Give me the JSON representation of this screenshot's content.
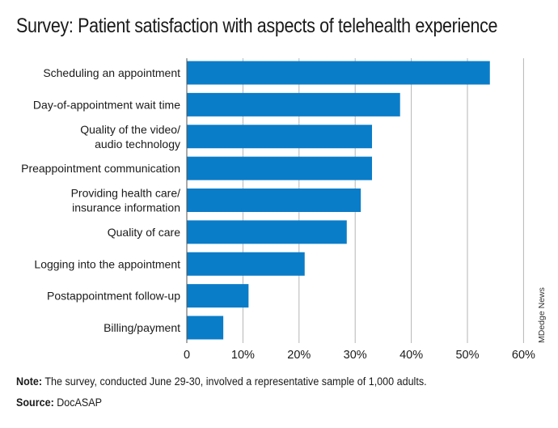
{
  "title": "Survey: Patient satisfaction with aspects of telehealth experience",
  "credit": "MDedge News",
  "note": {
    "label": "Note:",
    "text": " The survey, conducted June 29-30, involved a representative sample of 1,000 adults."
  },
  "source": {
    "label": "Source:",
    "text": " DocASAP"
  },
  "colors": {
    "bar": "#0a7dc9",
    "grid": "#b5b5b5",
    "axis": "#555555"
  },
  "chart_data": {
    "type": "bar",
    "orientation": "horizontal",
    "categories": [
      [
        "Scheduling an appointment"
      ],
      [
        "Day-of-appointment wait time"
      ],
      [
        "Quality of the video/",
        "audio technology"
      ],
      [
        "Preappointment communication"
      ],
      [
        "Providing health care/",
        "insurance information"
      ],
      [
        "Quality of care"
      ],
      [
        "Logging into the appointment"
      ],
      [
        "Postappointment follow-up"
      ],
      [
        "Billing/payment"
      ]
    ],
    "values": [
      54,
      38,
      33,
      33,
      31,
      28.5,
      21,
      11,
      6.5
    ],
    "xlim": [
      0,
      60
    ],
    "ticks": [
      0,
      10,
      20,
      30,
      40,
      50,
      60
    ],
    "tick_labels": [
      "0",
      "10%",
      "20%",
      "30%",
      "40%",
      "50%",
      "60%"
    ],
    "grid": true,
    "title": "Survey: Patient satisfaction with aspects of telehealth experience",
    "xlabel": "",
    "ylabel": ""
  }
}
